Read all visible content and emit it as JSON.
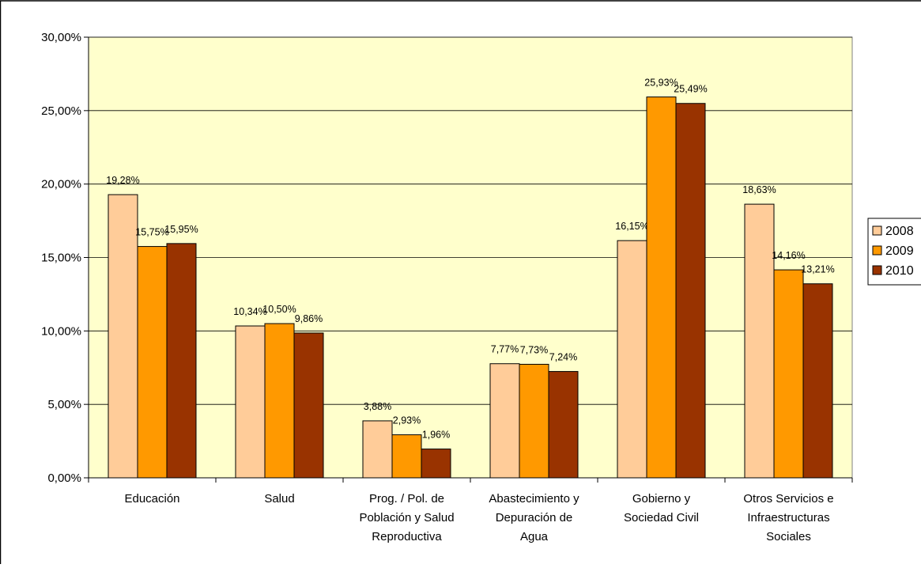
{
  "chart_data": {
    "type": "bar",
    "title": "",
    "xlabel": "",
    "ylabel": "",
    "categories": [
      [
        "Educación"
      ],
      [
        "Salud"
      ],
      [
        "Prog. / Pol. de",
        "Población y Salud",
        "Reproductiva"
      ],
      [
        "Abastecimiento y",
        "Depuración de",
        "Agua"
      ],
      [
        "Gobierno y",
        "Sociedad Civil"
      ],
      [
        "Otros Servicios e",
        "Infraestructuras",
        "Sociales"
      ]
    ],
    "series": [
      {
        "name": "2008",
        "color": "#FFCC99",
        "values": [
          19.28,
          10.34,
          3.88,
          7.77,
          16.15,
          18.63
        ],
        "labels": [
          "19,28%",
          "10,34%",
          "3,88%",
          "7,77%",
          "16,15%",
          "18,63%"
        ]
      },
      {
        "name": "2009",
        "color": "#FF9900",
        "values": [
          15.75,
          10.5,
          2.93,
          7.73,
          25.93,
          14.16
        ],
        "labels": [
          "15,75%",
          "10,50%",
          "2,93%",
          "7,73%",
          "25,93%",
          "14,16%"
        ]
      },
      {
        "name": "2010",
        "color": "#993300",
        "values": [
          15.95,
          9.86,
          1.96,
          7.24,
          25.49,
          13.21
        ],
        "labels": [
          "15,95%",
          "9,86%",
          "1,96%",
          "7,24%",
          "25,49%",
          "13,21%"
        ]
      }
    ],
    "ylim": [
      0,
      30
    ],
    "yticks": [
      0,
      5,
      10,
      15,
      20,
      25,
      30
    ],
    "ytick_labels": [
      "0,00%",
      "5,00%",
      "10,00%",
      "15,00%",
      "20,00%",
      "25,00%",
      "30,00%"
    ],
    "grid": true,
    "legend_position": "right",
    "plot_background": "#FFFFCC"
  }
}
